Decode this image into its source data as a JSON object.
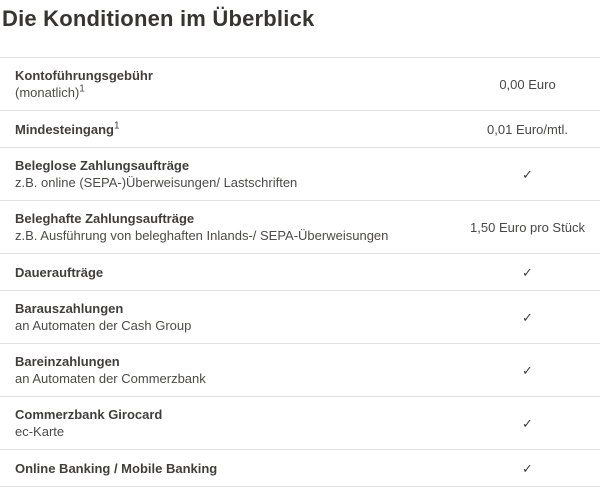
{
  "page": {
    "title": "Die Konditionen im Überblick"
  },
  "colors": {
    "background": "#ffffff",
    "title_text": "#38342f",
    "body_text": "#4a4a49",
    "separator": "#e2e2e1"
  },
  "icons": {
    "check": "✓"
  },
  "table": {
    "rows": [
      {
        "label": "Kontoführungsgebühr",
        "label_sup": "",
        "sub": "(monatlich)",
        "sub_sup": "1",
        "value": "0,00 Euro",
        "value_type": "text"
      },
      {
        "label": "Mindesteingang",
        "label_sup": "1",
        "sub": "",
        "sub_sup": "",
        "value": "0,01 Euro/mtl.",
        "value_type": "text"
      },
      {
        "label": "Beleglose Zahlungsaufträge",
        "label_sup": "",
        "sub": "z.B. online (SEPA-)Überweisungen/ Lastschriften",
        "sub_sup": "",
        "value": "✓",
        "value_type": "check"
      },
      {
        "label": "Beleghafte Zahlungsaufträge",
        "label_sup": "",
        "sub": "z.B. Ausführung von beleghaften Inlands-/ SEPA-Überweisungen",
        "sub_sup": "",
        "value": "1,50 Euro pro Stück",
        "value_type": "text"
      },
      {
        "label": "Daueraufträge",
        "label_sup": "",
        "sub": "",
        "sub_sup": "",
        "value": "✓",
        "value_type": "check"
      },
      {
        "label": "Barauszahlungen",
        "label_sup": "",
        "sub": "an Automaten der Cash Group",
        "sub_sup": "",
        "value": "✓",
        "value_type": "check"
      },
      {
        "label": "Bareinzahlungen",
        "label_sup": "",
        "sub": "an Automaten der Commerzbank",
        "sub_sup": "",
        "value": "✓",
        "value_type": "check"
      },
      {
        "label": "Commerzbank Girocard",
        "label_sup": "",
        "sub": "ec-Karte",
        "sub_sup": "",
        "value": "✓",
        "value_type": "check"
      },
      {
        "label": "Online Banking / Mobile Banking",
        "label_sup": "",
        "sub": "",
        "sub_sup": "",
        "value": "✓",
        "value_type": "check"
      }
    ]
  }
}
